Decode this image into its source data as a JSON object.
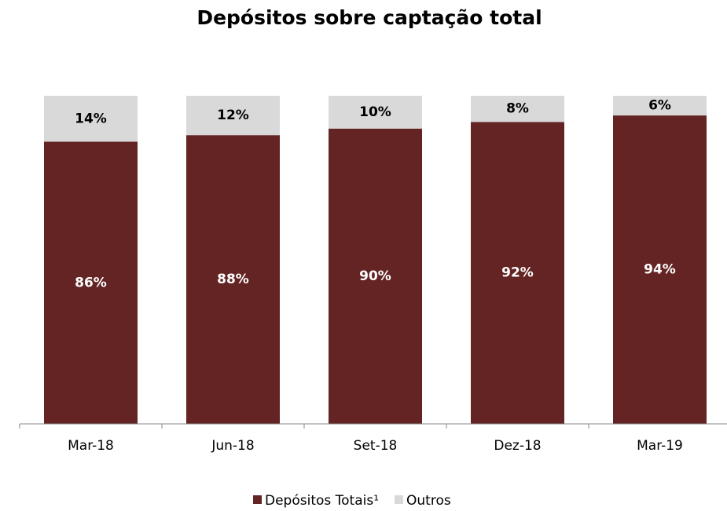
{
  "chart_data": {
    "type": "stacked_bar",
    "title": "Depósitos sobre captação total",
    "categories": [
      "Mar-18",
      "Jun-18",
      "Set-18",
      "Dez-18",
      "Mar-19"
    ],
    "series": [
      {
        "name": "Depósitos Totais¹",
        "color": "#632423",
        "values": [
          86,
          88,
          90,
          92,
          94
        ],
        "value_labels": [
          "86%",
          "88%",
          "90%",
          "92%",
          "94%"
        ]
      },
      {
        "name": "Outros",
        "color": "#d9d9d9",
        "values": [
          14,
          12,
          10,
          8,
          6
        ],
        "value_labels": [
          "14%",
          "12%",
          "10%",
          "8%",
          "6%"
        ]
      }
    ],
    "legend": "bottom"
  }
}
